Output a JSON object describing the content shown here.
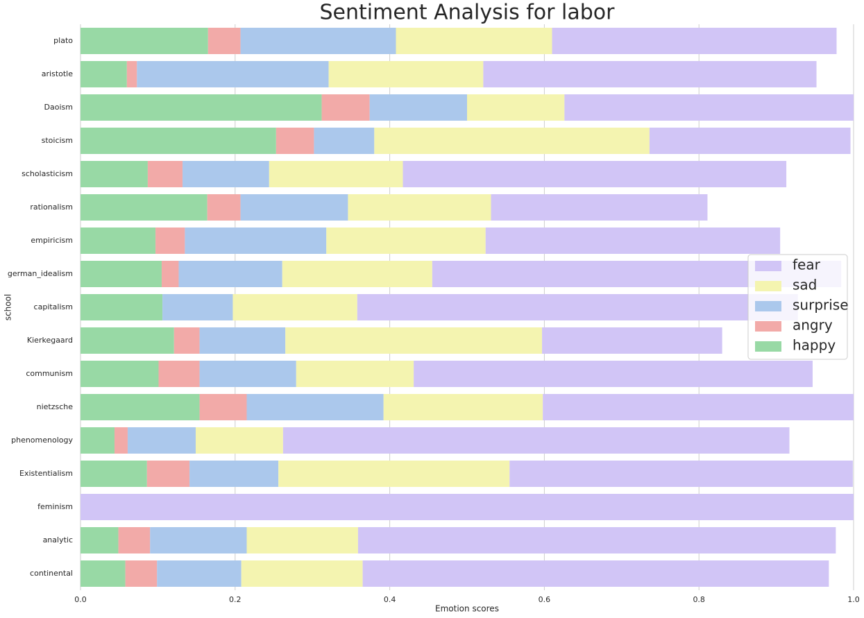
{
  "chart_data": {
    "type": "stacked_barh",
    "title": "Sentiment Analysis for labor",
    "xlabel": "Emotion scores",
    "ylabel": "school",
    "categories": [
      "plato",
      "aristotle",
      "Daoism",
      "stoicism",
      "scholasticism",
      "rationalism",
      "empiricism",
      "german_idealism",
      "capitalism",
      "Kierkegaard",
      "communism",
      "nietzsche",
      "phenomenology",
      "Existentialism",
      "feminism",
      "analytic",
      "continental"
    ],
    "series": [
      {
        "name": "fear",
        "color": "#d1c5f6",
        "values": [
          0.368,
          0.431,
          0.374,
          0.26,
          0.496,
          0.28,
          0.381,
          0.529,
          0.57,
          0.233,
          0.516,
          0.402,
          0.655,
          0.444,
          1.0,
          0.618,
          0.603
        ]
      },
      {
        "name": "sad",
        "color": "#f4f4b0",
        "values": [
          0.202,
          0.2,
          0.126,
          0.356,
          0.173,
          0.185,
          0.206,
          0.194,
          0.161,
          0.332,
          0.152,
          0.206,
          0.113,
          0.299,
          0,
          0.144,
          0.157
        ]
      },
      {
        "name": "surprise",
        "color": "#abc8ec",
        "values": [
          0.201,
          0.248,
          0.126,
          0.078,
          0.112,
          0.139,
          0.183,
          0.134,
          0.091,
          0.111,
          0.125,
          0.177,
          0.088,
          0.115,
          0,
          0.125,
          0.109
        ]
      },
      {
        "name": "angry",
        "color": "#f2aaa8",
        "values": [
          0.042,
          0.013,
          0.062,
          0.049,
          0.045,
          0.043,
          0.038,
          0.022,
          0,
          0.033,
          0.053,
          0.061,
          0.017,
          0.055,
          0,
          0.041,
          0.041
        ]
      },
      {
        "name": "happy",
        "color": "#98d9a5",
        "values": [
          0.165,
          0.06,
          0.312,
          0.253,
          0.087,
          0.164,
          0.097,
          0.105,
          0.106,
          0.121,
          0.101,
          0.154,
          0.044,
          0.086,
          0,
          0.049,
          0.058
        ]
      }
    ],
    "xlim": [
      0,
      1
    ],
    "xticks": [
      {
        "value": 0,
        "label": "0.0"
      },
      0.2,
      0.4,
      0.6,
      0.8,
      {
        "value": 1,
        "label": "1.0"
      }
    ],
    "grid": true,
    "legend": "center right"
  }
}
